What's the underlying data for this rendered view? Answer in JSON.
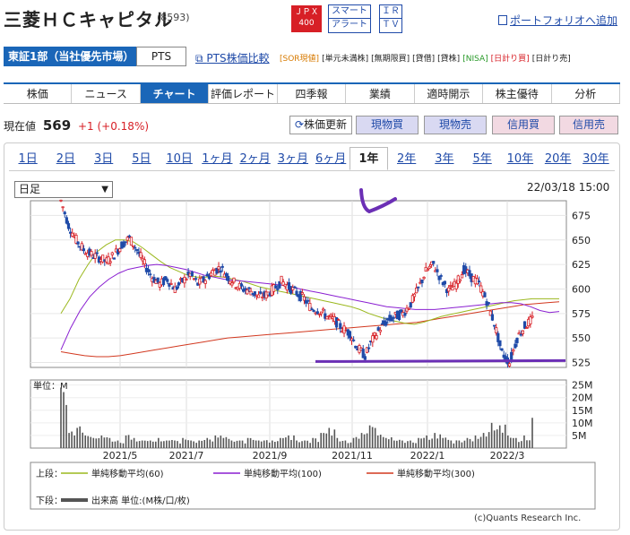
{
  "header": {
    "company": "三菱ＨＣキャピタル",
    "code": "(8593)",
    "jpx_line1": "ＪＰＸ",
    "jpx_line2": "400",
    "smart_line1": "スマート",
    "smart_line2": "アラート",
    "irtv_line1": "ＩＲ",
    "irtv_line2": "ＴＶ",
    "portfolio_link": "ポートフォリオへ追加"
  },
  "market": {
    "selected": "東証1部（当社優先市場）",
    "pts": "PTS",
    "pts_compare": "PTS株価比較",
    "tags": [
      "[SOR現値]",
      "[単元未満株]",
      "[無期限買]",
      "[貸借]",
      "[貸株]",
      "[NISA]",
      "[日計り買]",
      "[日計り売]"
    ]
  },
  "nav": {
    "tabs": [
      "株価",
      "ニュース",
      "チャート",
      "評価レポート",
      "四季報",
      "業績",
      "適時開示",
      "株主優待",
      "分析"
    ],
    "active": "チャート"
  },
  "quote": {
    "label": "現在値",
    "price": "569",
    "change": "+1 (+0.18%)",
    "refresh": "株価更新",
    "buy": "現物買",
    "sell": "現物売",
    "margin_buy": "信用買",
    "margin_sell": "信用売"
  },
  "periods": {
    "items": [
      "1日",
      "2日",
      "3日",
      "5日",
      "10日",
      "1ヶ月",
      "2ヶ月",
      "3ヶ月",
      "6ヶ月",
      "1年",
      "2年",
      "3年",
      "5年",
      "10年",
      "20年",
      "30年"
    ],
    "active": "1年"
  },
  "chart_controls": {
    "interval": "日足",
    "timestamp": "22/03/18 15:00"
  },
  "chart_data": {
    "type": "candlestick",
    "price_ticks": [
      675,
      650,
      625,
      600,
      575,
      550,
      525
    ],
    "volume_ticks": [
      "25M",
      "20M",
      "15M",
      "10M",
      "5M"
    ],
    "volume_axis_label": "単位：M",
    "x_ticks": [
      "2021/5",
      "2021/7",
      "2021/9",
      "2021/11",
      "2022/1",
      "2022/3"
    ],
    "price_series": [
      690,
      665,
      650,
      640,
      635,
      632,
      628,
      635,
      645,
      652,
      640,
      625,
      612,
      605,
      610,
      600,
      608,
      615,
      605,
      610,
      618,
      622,
      612,
      605,
      600,
      598,
      592,
      594,
      600,
      608,
      602,
      596,
      590,
      580,
      578,
      572,
      568,
      560,
      555,
      540,
      532,
      548,
      560,
      568,
      572,
      575,
      585,
      600,
      618,
      625,
      610,
      598,
      605,
      620,
      612,
      605,
      588,
      565,
      535,
      525,
      550,
      562,
      569
    ],
    "sma60": [
      575,
      590,
      610,
      625,
      638,
      645,
      650,
      650,
      648,
      642,
      635,
      628,
      622,
      618,
      614,
      612,
      612,
      613,
      612,
      610,
      608,
      605,
      602,
      600,
      598,
      596,
      594,
      592,
      590,
      588,
      586,
      584,
      582,
      579,
      575,
      572,
      569,
      567,
      565,
      564,
      566,
      569,
      572,
      574,
      576,
      578,
      580,
      582,
      584,
      586,
      588,
      589,
      590,
      590,
      590,
      590
    ],
    "sma100": [
      538,
      560,
      578,
      592,
      602,
      610,
      616,
      620,
      622,
      624,
      625,
      624,
      622,
      620,
      617,
      614,
      612,
      610,
      609,
      608,
      607,
      606,
      605,
      604,
      602,
      600,
      598,
      596,
      594,
      592,
      590,
      588,
      586,
      584,
      582,
      581,
      580,
      579,
      579,
      579,
      580,
      581,
      582,
      583,
      584,
      585,
      586,
      586,
      585,
      582,
      578,
      576,
      577
    ],
    "sma300": [
      536,
      534,
      532,
      531,
      531,
      532,
      534,
      536,
      538,
      540,
      542,
      544,
      546,
      548,
      550,
      551,
      552,
      553,
      554,
      555,
      556,
      557,
      558,
      559,
      560,
      561,
      562,
      563,
      564,
      565,
      566,
      568,
      570,
      572,
      574,
      576,
      578,
      580,
      582,
      584,
      585,
      586,
      587
    ],
    "volume_series": [
      24,
      6,
      8,
      5,
      4,
      5,
      4,
      3,
      5,
      4,
      3,
      3,
      4,
      3,
      3,
      4,
      3,
      3,
      4,
      5,
      4,
      3,
      3,
      4,
      3,
      3,
      3,
      4,
      5,
      3,
      3,
      4,
      6,
      8,
      4,
      3,
      4,
      6,
      9,
      5,
      4,
      3,
      3,
      3,
      4,
      5,
      6,
      4,
      3,
      3,
      4,
      5,
      6,
      10,
      9,
      5,
      4,
      5,
      12
    ],
    "legend": [
      {
        "group": "上段：",
        "name": "単純移動平均(60)",
        "color": "#9bb81e"
      },
      {
        "group": "",
        "name": "単純移動平均(100)",
        "color": "#8a1fd1"
      },
      {
        "group": "",
        "name": "単純移動平均(300)",
        "color": "#d2381f"
      },
      {
        "group": "下段：",
        "name": "出来高 単位:(M株/口/枚)",
        "color": "#555555"
      }
    ],
    "colors": {
      "up": "#d71f26",
      "down": "#1f4aa8",
      "annotation": "#6b2fb5"
    }
  },
  "footer": {
    "copyright": "(c)Quants Research Inc."
  }
}
